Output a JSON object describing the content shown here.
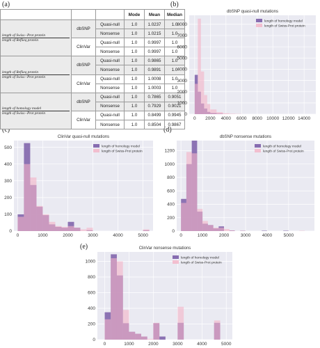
{
  "panel_labels": [
    "(a)",
    "(b)",
    "(c)",
    "(d)",
    "(e)"
  ],
  "table": {
    "headers": [
      "",
      "",
      "",
      "Mode",
      "Mean",
      "Median"
    ],
    "groups": [
      {
        "label": "length of Swiss-Prot protein / length of RefSeq protein",
        "lines": [
          "length of Swiss−Prot protein",
          "length of RefSeq protein"
        ]
      },
      {
        "label": "length of RefSeq protein / length of Swiss-Prot protein",
        "lines": [
          "length of RefSeq protein",
          "length of Swiss−Prot protein"
        ]
      },
      {
        "label": "length of homology model / length of Swiss-Prot protein",
        "lines": [
          "length of homology model",
          "length of Swiss−Prot protein"
        ]
      }
    ],
    "rows": [
      {
        "db": "dbSNP",
        "type": "Quasi-null",
        "mode": "1.0",
        "mean": "1.0237",
        "median": "1.0"
      },
      {
        "db": "",
        "type": "Nonsense",
        "mode": "1.0",
        "mean": "1.0215",
        "median": "1.0"
      },
      {
        "db": "ClinVar",
        "type": "Quasi-null",
        "mode": "1.0",
        "mean": "0.9997",
        "median": "1.0"
      },
      {
        "db": "",
        "type": "Nonsense",
        "mode": "1.0",
        "mean": "0.9997",
        "median": "1.0"
      },
      {
        "db": "dbSNP",
        "type": "Quasi-null",
        "mode": "1.0",
        "mean": "0.9865",
        "median": "1.0"
      },
      {
        "db": "",
        "type": "Nonsense",
        "mode": "1.0",
        "mean": "0.9891",
        "median": "1.0"
      },
      {
        "db": "ClinVar",
        "type": "Quasi-null",
        "mode": "1.0",
        "mean": "1.0008",
        "median": "1.0"
      },
      {
        "db": "",
        "type": "Nonsense",
        "mode": "1.0",
        "mean": "1.0003",
        "median": "1.0"
      },
      {
        "db": "dbSNP",
        "type": "Quasi-null",
        "mode": "1.0",
        "mean": "0.7865",
        "median": "0.9051"
      },
      {
        "db": "",
        "type": "Nonsense",
        "mode": "1.0",
        "mean": "0.7929",
        "median": "0.9021"
      },
      {
        "db": "ClinVar",
        "type": "Quasi-null",
        "mode": "1.0",
        "mean": "0.8499",
        "median": "0.9945"
      },
      {
        "db": "",
        "type": "Nonsense",
        "mode": "1.0",
        "mean": "0.8504",
        "median": "0.9867"
      }
    ]
  },
  "colors": {
    "homology": "#7b5ea8",
    "swissprot": "#f4b3c6",
    "plot_bg": "#eaeaf2",
    "grid": "#ffffff"
  },
  "chart_data": [
    {
      "type": "bar",
      "panel": "(b)",
      "title": "dbSNP quasi-null mutations",
      "xlim": [
        -700,
        15500
      ],
      "ylim": [
        0,
        8800
      ],
      "xticks": [
        0,
        2000,
        4000,
        6000,
        8000,
        10000,
        12000,
        14000
      ],
      "yticks": [
        0,
        1000,
        2000,
        3000,
        4000,
        5000,
        6000,
        7000,
        8000
      ],
      "series": [
        {
          "name": "length of homology model",
          "bins": [
            [
              0,
              400,
              3500
            ],
            [
              400,
              800,
              2000
            ],
            [
              800,
              1200,
              950
            ],
            [
              1200,
              1600,
              500
            ],
            [
              1600,
              2000,
              200
            ],
            [
              2000,
              2800,
              100
            ],
            [
              2800,
              3600,
              50
            ]
          ]
        },
        {
          "name": "length of Swiss-Prot protein",
          "bins": [
            [
              0,
              400,
              2700
            ],
            [
              400,
              800,
              8500
            ],
            [
              800,
              1200,
              3800
            ],
            [
              1200,
              1600,
              1700
            ],
            [
              1600,
              2000,
              900
            ],
            [
              2000,
              2800,
              420
            ],
            [
              2800,
              3600,
              180
            ],
            [
              3600,
              4400,
              80
            ],
            [
              4400,
              5200,
              40
            ],
            [
              5200,
              6000,
              20
            ]
          ]
        }
      ]
    },
    {
      "type": "bar",
      "panel": "(c)",
      "title": "ClinVar quasi-null mutations",
      "xlim": [
        -150,
        5400
      ],
      "ylim": [
        0,
        540
      ],
      "xticks": [
        0,
        1000,
        2000,
        3000,
        4000,
        5000
      ],
      "yticks": [
        0,
        100,
        200,
        300,
        400,
        500
      ],
      "series": [
        {
          "name": "length of homology model",
          "bins": [
            [
              0,
              250,
              100
            ],
            [
              250,
              500,
              525
            ],
            [
              500,
              750,
              275
            ],
            [
              750,
              1000,
              145
            ],
            [
              1000,
              1250,
              95
            ],
            [
              1250,
              1500,
              40
            ],
            [
              1500,
              1750,
              25
            ],
            [
              1750,
              2000,
              20
            ],
            [
              2000,
              2250,
              55
            ],
            [
              2250,
              2500,
              20
            ],
            [
              2750,
              3000,
              5
            ],
            [
              5000,
              5250,
              5
            ]
          ]
        },
        {
          "name": "length of Swiss-Prot protein",
          "bins": [
            [
              0,
              250,
              85
            ],
            [
              250,
              500,
              400
            ],
            [
              500,
              750,
              320
            ],
            [
              750,
              1000,
              150
            ],
            [
              1000,
              1250,
              100
            ],
            [
              1250,
              1500,
              55
            ],
            [
              1500,
              1750,
              30
            ],
            [
              1750,
              2000,
              25
            ],
            [
              2000,
              2250,
              30
            ],
            [
              2250,
              2500,
              20
            ],
            [
              2500,
              2750,
              10
            ],
            [
              2750,
              3000,
              20
            ],
            [
              5000,
              5250,
              10
            ]
          ]
        }
      ]
    },
    {
      "type": "bar",
      "panel": "(d)",
      "title": "dbSNP nonsense mutations",
      "xlim": [
        -200,
        6200
      ],
      "ylim": [
        0,
        1350
      ],
      "xticks": [
        0,
        1000,
        2000,
        3000,
        4000,
        5000
      ],
      "yticks": [
        0,
        200,
        400,
        600,
        800,
        1000,
        1200
      ],
      "series": [
        {
          "name": "length of homology model",
          "bins": [
            [
              0,
              250,
              480
            ],
            [
              250,
              500,
              1000
            ],
            [
              500,
              750,
              1350
            ],
            [
              750,
              1000,
              290
            ],
            [
              1000,
              1250,
              110
            ],
            [
              1250,
              1500,
              90
            ],
            [
              1500,
              1750,
              40
            ],
            [
              1750,
              2000,
              70
            ],
            [
              2250,
              2500,
              10
            ],
            [
              2750,
              3000,
              5
            ],
            [
              3750,
              4000,
              5
            ],
            [
              4750,
              5000,
              5
            ]
          ]
        },
        {
          "name": "length of Swiss-Prot protein",
          "bins": [
            [
              0,
              250,
              420
            ],
            [
              250,
              500,
              1180
            ],
            [
              500,
              750,
              1160
            ],
            [
              750,
              1000,
              330
            ],
            [
              1000,
              1250,
              150
            ],
            [
              1250,
              1500,
              90
            ],
            [
              1500,
              1750,
              50
            ],
            [
              1750,
              2000,
              50
            ],
            [
              2000,
              2250,
              30
            ],
            [
              2250,
              2500,
              10
            ],
            [
              2750,
              3000,
              5
            ],
            [
              5500,
              5750,
              5
            ]
          ]
        }
      ]
    },
    {
      "type": "bar",
      "panel": "(e)",
      "title": "ClinVar nonsense mutations",
      "xlim": [
        -300,
        5250
      ],
      "ylim": [
        0,
        1120
      ],
      "xticks": [
        0,
        1000,
        2000,
        3000,
        4000,
        5000
      ],
      "yticks": [
        0,
        200,
        400,
        600,
        800,
        1000
      ],
      "series": [
        {
          "name": "length of homology model",
          "bins": [
            [
              0,
              250,
              350
            ],
            [
              250,
              500,
              1090
            ],
            [
              500,
              750,
              820
            ],
            [
              750,
              1000,
              210
            ],
            [
              1000,
              1250,
              100
            ],
            [
              1250,
              1500,
              75
            ],
            [
              1500,
              1750,
              40
            ],
            [
              2000,
              2250,
              210
            ],
            [
              2250,
              2500,
              40
            ],
            [
              3000,
              3250,
              215
            ],
            [
              4500,
              4750,
              215
            ]
          ]
        },
        {
          "name": "length of Swiss-Prot protein",
          "bins": [
            [
              0,
              250,
              260
            ],
            [
              250,
              500,
              1040
            ],
            [
              500,
              750,
              1000
            ],
            [
              750,
              1000,
              380
            ],
            [
              1000,
              1250,
              100
            ],
            [
              1250,
              1500,
              75
            ],
            [
              1500,
              1750,
              40
            ],
            [
              1750,
              2000,
              10
            ],
            [
              2000,
              2250,
              215
            ],
            [
              3000,
              3250,
              420
            ],
            [
              4500,
              4750,
              245
            ]
          ]
        }
      ]
    }
  ]
}
